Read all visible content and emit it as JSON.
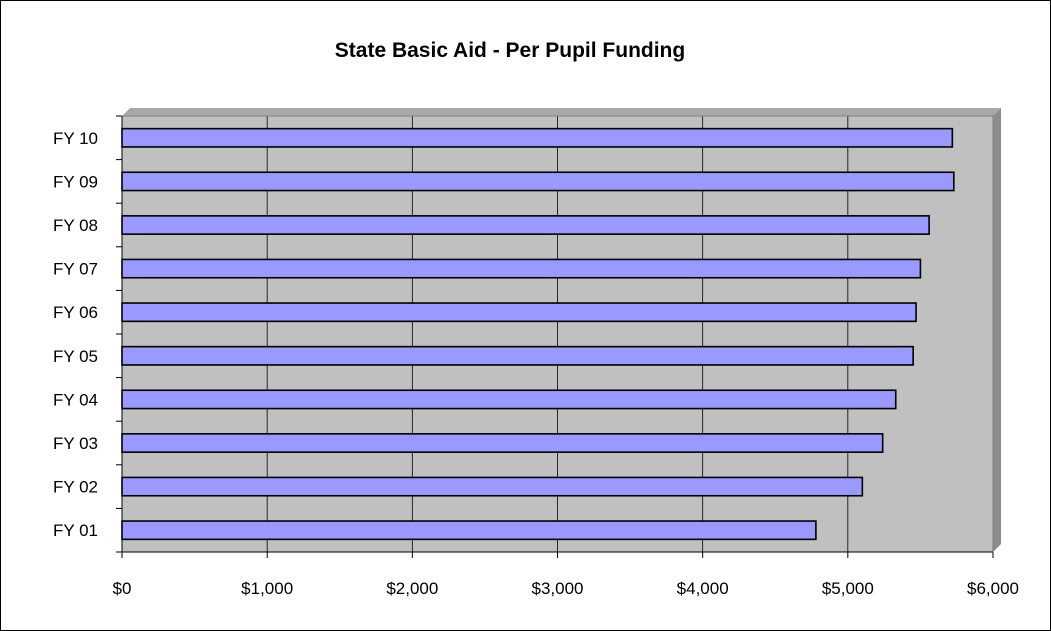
{
  "chart_data": {
    "type": "bar",
    "orientation": "horizontal",
    "title": "State Basic Aid - Per Pupil Funding",
    "xlabel": "",
    "ylabel": "",
    "categories": [
      "FY 01",
      "FY 02",
      "FY 03",
      "FY 04",
      "FY 05",
      "FY 06",
      "FY 07",
      "FY 08",
      "FY 09",
      "FY 10"
    ],
    "values": [
      4780,
      5100,
      5240,
      5330,
      5450,
      5470,
      5500,
      5560,
      5730,
      5720
    ],
    "xlim": [
      0,
      6000
    ],
    "x_ticks": [
      0,
      1000,
      2000,
      3000,
      4000,
      5000,
      6000
    ],
    "x_tick_labels": [
      "$0",
      "$1,000",
      "$2,000",
      "$3,000",
      "$4,000",
      "$5,000",
      "$6,000"
    ],
    "grid": "vertical",
    "legend": "none",
    "colors": {
      "bar_fill": "#9999ff",
      "bar_stroke": "#000000",
      "plot_background": "#c0c0c0",
      "gridline": "#000000"
    }
  }
}
